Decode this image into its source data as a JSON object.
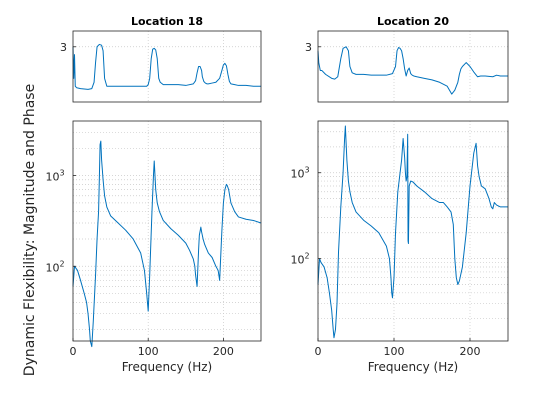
{
  "figure": {
    "ylabel": "Dynamic Flexibility: Magnitude and Phase"
  },
  "chart_data": [
    {
      "type": "line",
      "panel": "phase",
      "title": "Location 18",
      "yticks": [
        "3"
      ],
      "ylim": [
        2.3,
        3.2
      ],
      "xlim": [
        0,
        250
      ],
      "grid": true,
      "series": [
        {
          "color": "#0072bd",
          "x": [
            0,
            1,
            2,
            3,
            5,
            10,
            20,
            25,
            28,
            30,
            32,
            35,
            38,
            40,
            42,
            45,
            50,
            60,
            70,
            80,
            90,
            98,
            100,
            102,
            104,
            106,
            108,
            110,
            112,
            114,
            116,
            120,
            130,
            140,
            150,
            160,
            163,
            165,
            167,
            169,
            171,
            172,
            174,
            176,
            178,
            180,
            185,
            190,
            195,
            198,
            200,
            202,
            204,
            206,
            208,
            210,
            215,
            220,
            230,
            240,
            250
          ],
          "y": [
            3.0,
            2.6,
            2.9,
            2.5,
            2.48,
            2.47,
            2.46,
            2.47,
            2.55,
            2.8,
            3.0,
            3.03,
            3.02,
            2.95,
            2.6,
            2.5,
            2.5,
            2.5,
            2.5,
            2.5,
            2.5,
            2.5,
            2.52,
            2.6,
            2.85,
            2.97,
            2.98,
            2.96,
            2.85,
            2.6,
            2.55,
            2.52,
            2.52,
            2.52,
            2.51,
            2.53,
            2.57,
            2.67,
            2.75,
            2.75,
            2.7,
            2.62,
            2.56,
            2.54,
            2.53,
            2.53,
            2.54,
            2.55,
            2.6,
            2.7,
            2.77,
            2.79,
            2.76,
            2.65,
            2.56,
            2.53,
            2.52,
            2.51,
            2.51,
            2.5,
            2.5
          ]
        }
      ]
    },
    {
      "type": "line",
      "panel": "phase",
      "title": "Location 20",
      "yticks": [
        "3"
      ],
      "ylim": [
        2.3,
        3.2
      ],
      "xlim": [
        0,
        250
      ],
      "grid": true,
      "series": [
        {
          "color": "#0072bd",
          "x": [
            0,
            1,
            2,
            3,
            5,
            10,
            18,
            22,
            26,
            30,
            33,
            37,
            40,
            42,
            45,
            50,
            60,
            70,
            80,
            90,
            98,
            102,
            104,
            106,
            108,
            110,
            112,
            114,
            116,
            118,
            120,
            122,
            124,
            126,
            130,
            140,
            150,
            160,
            170,
            176,
            180,
            184,
            186,
            188,
            190,
            195,
            200,
            205,
            210,
            214,
            220,
            230,
            235,
            240,
            245,
            250
          ],
          "y": [
            2.95,
            2.8,
            2.75,
            2.7,
            2.7,
            2.65,
            2.6,
            2.59,
            2.62,
            2.85,
            2.98,
            3.0,
            2.95,
            2.75,
            2.67,
            2.65,
            2.65,
            2.64,
            2.64,
            2.64,
            2.66,
            2.75,
            2.95,
            2.99,
            2.98,
            2.95,
            2.85,
            2.72,
            2.63,
            2.7,
            2.73,
            2.66,
            2.64,
            2.63,
            2.62,
            2.6,
            2.58,
            2.55,
            2.5,
            2.4,
            2.45,
            2.55,
            2.65,
            2.72,
            2.75,
            2.8,
            2.75,
            2.68,
            2.62,
            2.63,
            2.63,
            2.62,
            2.64,
            2.63,
            2.63,
            2.63
          ]
        }
      ]
    },
    {
      "type": "line",
      "panel": "magnitude",
      "yscale": "log",
      "ylim": [
        15,
        4000
      ],
      "xlim": [
        0,
        250
      ],
      "xlabel": "Frequency (Hz)",
      "xticks": [
        "0",
        "100",
        "200"
      ],
      "yticks": [
        "10^2",
        "10^3"
      ],
      "grid": true,
      "series": [
        {
          "color": "#0072bd",
          "x": [
            0,
            2,
            4,
            6,
            10,
            15,
            18,
            20,
            22,
            23,
            25,
            27,
            30,
            32,
            34,
            35,
            36,
            37,
            38,
            40,
            42,
            45,
            50,
            60,
            70,
            80,
            90,
            95,
            98,
            100,
            102,
            105,
            107,
            108,
            110,
            112,
            115,
            120,
            130,
            140,
            150,
            155,
            160,
            162,
            163,
            165,
            167,
            168,
            170,
            171,
            173,
            175,
            177,
            180,
            185,
            190,
            193,
            195,
            198,
            200,
            202,
            204,
            205,
            207,
            210,
            215,
            220,
            230,
            240,
            250
          ],
          "y": [
            60,
            100,
            95,
            90,
            70,
            50,
            40,
            30,
            20,
            15,
            13,
            25,
            80,
            200,
            400,
            900,
            2200,
            2400,
            1500,
            900,
            600,
            450,
            360,
            300,
            250,
            200,
            140,
            90,
            50,
            32,
            80,
            400,
            1000,
            1450,
            700,
            500,
            400,
            320,
            260,
            220,
            180,
            150,
            120,
            100,
            80,
            60,
            150,
            220,
            270,
            240,
            200,
            175,
            160,
            140,
            125,
            100,
            90,
            70,
            250,
            500,
            700,
            800,
            780,
            700,
            500,
            400,
            350,
            330,
            320,
            300
          ]
        }
      ]
    },
    {
      "type": "line",
      "panel": "magnitude",
      "yscale": "log",
      "ylim": [
        11,
        4000
      ],
      "xlim": [
        0,
        250
      ],
      "xlabel": "Frequency (Hz)",
      "xticks": [
        "0",
        "100",
        "200"
      ],
      "yticks": [
        "10^2",
        "10^3"
      ],
      "grid": true,
      "series": [
        {
          "color": "#0072bd",
          "x": [
            0,
            2,
            4,
            8,
            12,
            15,
            18,
            20,
            21,
            23,
            25,
            27,
            30,
            33,
            35,
            36,
            37,
            38,
            40,
            42,
            45,
            50,
            60,
            70,
            80,
            90,
            94,
            96,
            97,
            98,
            100,
            102,
            105,
            108,
            110,
            112,
            114,
            115,
            116,
            117,
            118,
            118.5,
            119,
            120,
            122,
            125,
            130,
            140,
            150,
            160,
            165,
            170,
            175,
            178,
            180,
            182,
            184,
            186,
            190,
            195,
            200,
            205,
            208,
            210,
            212,
            215,
            220,
            225,
            228,
            230,
            232,
            235,
            240,
            245,
            250
          ],
          "y": [
            50,
            100,
            90,
            80,
            60,
            40,
            25,
            15,
            12,
            15,
            30,
            120,
            400,
            1000,
            2500,
            3500,
            2200,
            1400,
            800,
            600,
            450,
            350,
            280,
            240,
            200,
            140,
            100,
            60,
            40,
            35,
            60,
            200,
            600,
            1000,
            1400,
            2500,
            1500,
            1000,
            800,
            900,
            2800,
            160,
            150,
            700,
            800,
            780,
            700,
            600,
            500,
            450,
            450,
            400,
            350,
            250,
            100,
            60,
            50,
            55,
            80,
            200,
            700,
            1700,
            2200,
            1200,
            900,
            700,
            650,
            500,
            400,
            380,
            450,
            420,
            400,
            400,
            400
          ]
        }
      ]
    }
  ]
}
